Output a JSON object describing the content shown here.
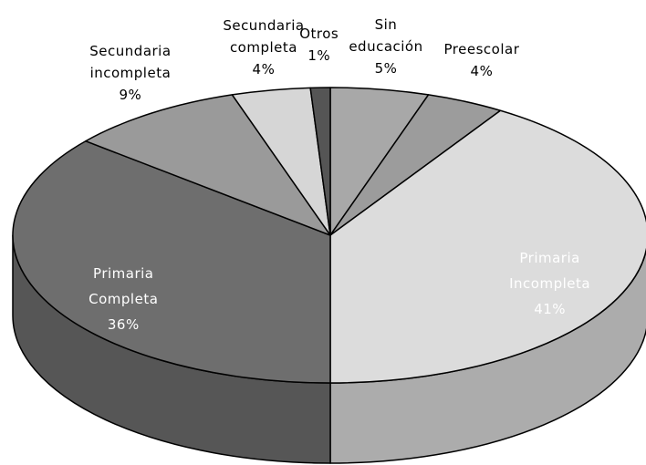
{
  "chart_data": {
    "type": "pie",
    "categories": [
      "Sin educación",
      "Preescolar",
      "Primaria Incompleta",
      "Primaria Completa",
      "Secundaria incompleta",
      "Secundaria completa",
      "Otros"
    ],
    "values": [
      5,
      4,
      41,
      36,
      9,
      4,
      1
    ],
    "value_labels": [
      "5%",
      "4%",
      "41%",
      "36%",
      "9%",
      "4%",
      "1%"
    ],
    "colors": [
      "#a8a8a8",
      "#9c9c9c",
      "#dcdcdc",
      "#6e6e6e",
      "#9a9a9a",
      "#d6d6d6",
      "#555555"
    ]
  }
}
